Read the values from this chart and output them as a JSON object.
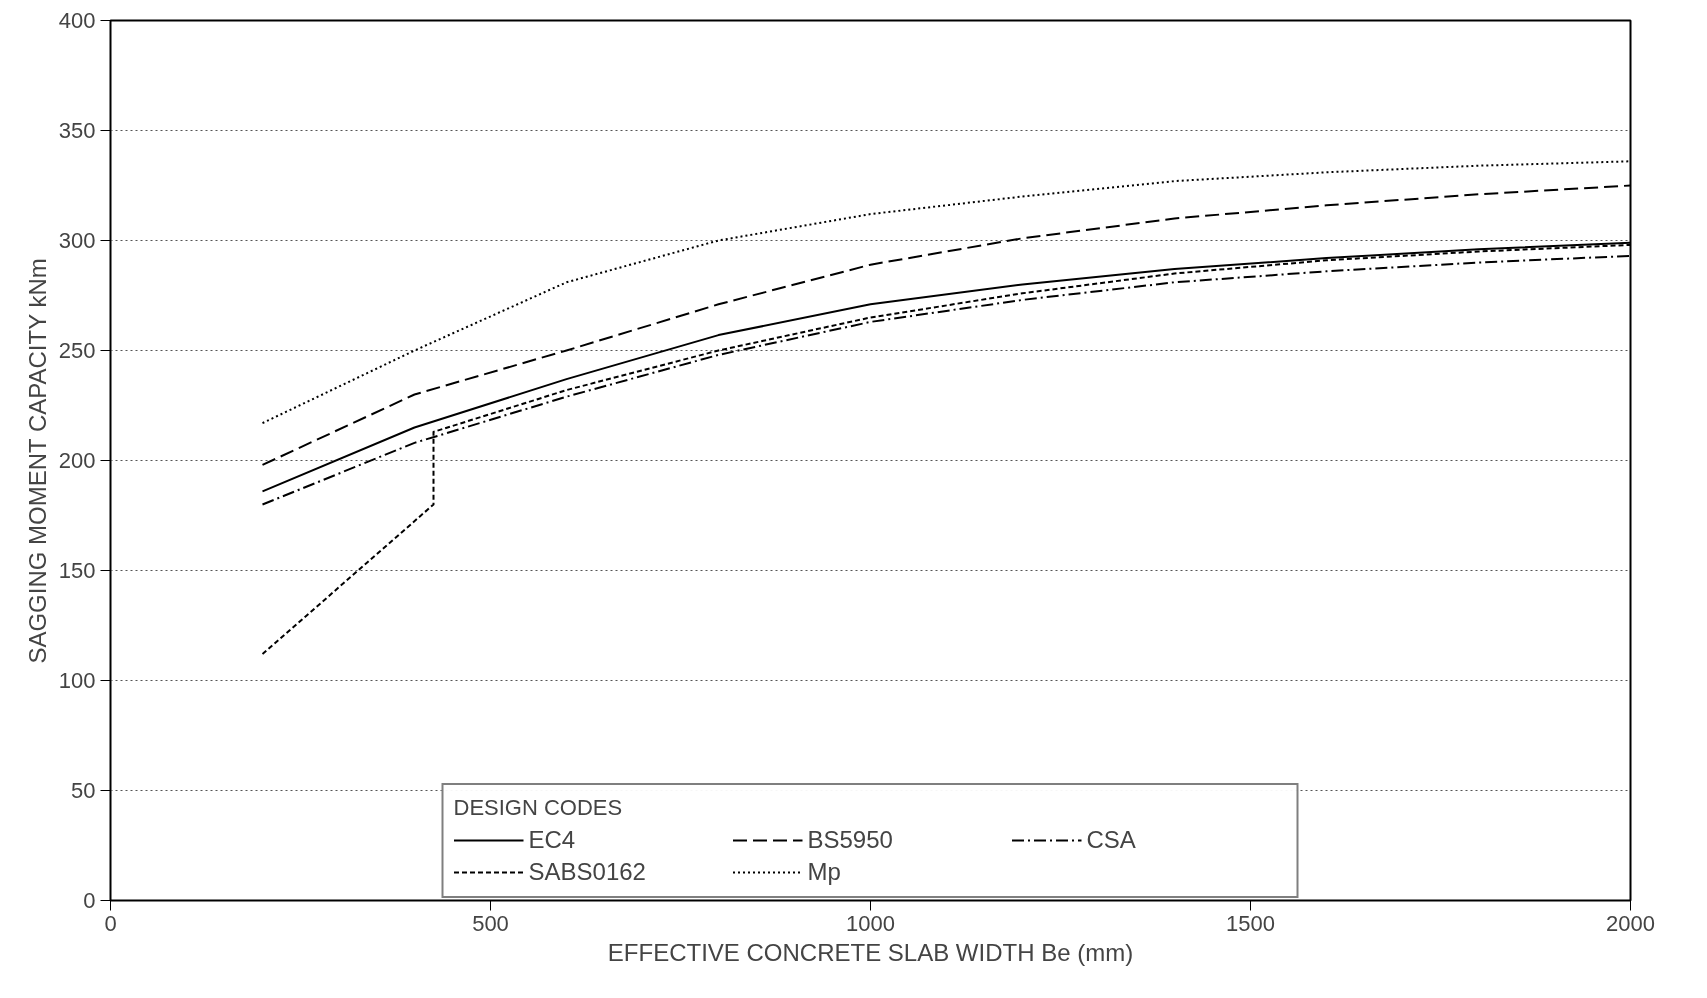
{
  "chart_data": {
    "type": "line",
    "xlabel": "EFFECTIVE CONCRETE SLAB WIDTH Be (mm)",
    "ylabel": "SAGGING MOMENT CAPACITY kNm",
    "legend_title": "DESIGN CODES",
    "xlim": [
      0,
      2000
    ],
    "xticks": [
      0,
      500,
      1000,
      1500,
      2000
    ],
    "ylim": [
      0,
      400
    ],
    "yticks": [
      0,
      50,
      100,
      150,
      200,
      250,
      300,
      350,
      400
    ],
    "grid": "y",
    "legend": "bottom",
    "marker": "none",
    "series": [
      {
        "name": "EC4",
        "color": "#000000",
        "line_style": "solid",
        "x": [
          200,
          400,
          600,
          800,
          1000,
          1200,
          1400,
          1600,
          1800,
          2000
        ],
        "values": [
          186,
          215,
          237,
          257,
          271,
          280,
          287,
          292,
          296,
          299
        ]
      },
      {
        "name": "BS5950",
        "color": "#000000",
        "line_style": "dashed",
        "x": [
          200,
          400,
          600,
          800,
          1000,
          1200,
          1400,
          1600,
          1800,
          2000
        ],
        "values": [
          198,
          230,
          250,
          271,
          289,
          301,
          310,
          316,
          321,
          325
        ]
      },
      {
        "name": "CSA",
        "color": "#000000",
        "line_style": "dashdot",
        "x": [
          200,
          400,
          600,
          800,
          1000,
          1200,
          1400,
          1600,
          1800,
          2000
        ],
        "values": [
          180,
          208,
          229,
          248,
          263,
          273,
          281,
          286,
          290,
          293
        ]
      },
      {
        "name": "SABS0162",
        "color": "#000000",
        "line_style": "dashed_fine",
        "x": [
          200,
          425,
          425,
          600,
          800,
          1000,
          1200,
          1400,
          1600,
          1800,
          2000
        ],
        "values": [
          112,
          180,
          213,
          232,
          250,
          265,
          276,
          285,
          291,
          295,
          298
        ]
      },
      {
        "name": "Mp",
        "color": "#000000",
        "line_style": "dotted",
        "x": [
          200,
          400,
          600,
          800,
          1000,
          1200,
          1400,
          1600,
          1800,
          2000
        ],
        "values": [
          217,
          250,
          281,
          300,
          312,
          320,
          327,
          331,
          334,
          336
        ]
      }
    ]
  }
}
